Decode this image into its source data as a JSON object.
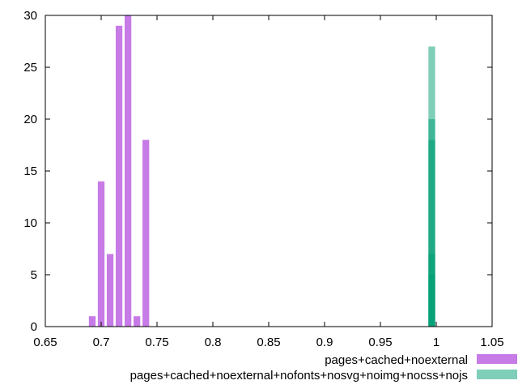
{
  "chart_data": {
    "type": "bar",
    "title": "",
    "xlabel": "",
    "ylabel": "",
    "xlim": [
      0.65,
      1.05
    ],
    "ylim": [
      0,
      30
    ],
    "bar_width": 0.006,
    "x_ticks": [
      0.65,
      0.7,
      0.75,
      0.8,
      0.85,
      0.9,
      0.95,
      1,
      1.05
    ],
    "x_tick_labels": [
      "0.65",
      "0.7",
      "0.75",
      "0.8",
      "0.85",
      "0.9",
      "0.95",
      "1",
      "1.05"
    ],
    "y_ticks": [
      0,
      5,
      10,
      15,
      20,
      25,
      30
    ],
    "y_tick_labels": [
      "0",
      "5",
      "10",
      "15",
      "20",
      "25",
      "30"
    ],
    "grid": false,
    "legend_position": "bottom-right",
    "series": [
      {
        "name": "pages+cached+noexternal",
        "color": "#c77be6",
        "opacity": 1.0,
        "x": [
          0.692,
          0.7,
          0.708,
          0.716,
          0.724,
          0.732,
          0.74
        ],
        "values": [
          1,
          14,
          7,
          29,
          30,
          1,
          18
        ]
      },
      {
        "name": "pages+cached+noexternal+nofonts+nosvg+noimg+nocss+nojs",
        "color": "#009e73",
        "opacity": 0.5,
        "x": [
          0.996,
          0.996,
          0.996,
          0.996,
          0.996
        ],
        "values": [
          27,
          20,
          18,
          7,
          5
        ]
      }
    ]
  }
}
